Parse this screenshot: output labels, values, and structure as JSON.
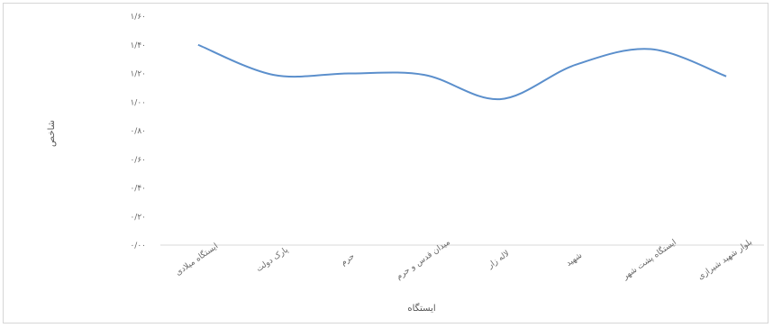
{
  "chart_data": {
    "type": "line",
    "title": "",
    "xlabel": "ایستگاه",
    "ylabel": "شاخص",
    "categories": [
      "ایستگاه میلادی",
      "پارک دولت",
      "حرم",
      "میدان قدس و حرم",
      "لاله زار",
      "شهید",
      "ایستگاه پشت شهر",
      "بلوار شهید شیرازی"
    ],
    "y_ticks": [
      "۰/۰۰",
      "۰/۲۰",
      "۰/۴۰",
      "۰/۶۰",
      "۰/۸۰",
      "۱/۰۰",
      "۱/۲۰",
      "۱/۴۰",
      "۱/۶۰"
    ],
    "ylim": [
      0,
      1.6
    ],
    "grid": false,
    "series": [
      {
        "values": [
          1.4,
          1.19,
          1.2,
          1.19,
          1.02,
          1.26,
          1.37,
          1.18
        ]
      }
    ],
    "colors": {
      "line": "#5b8fcc",
      "axis": "#d9d9d9"
    }
  }
}
